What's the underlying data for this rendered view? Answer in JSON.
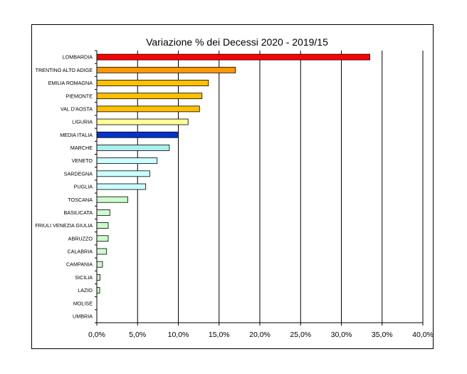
{
  "chart_data": {
    "type": "bar",
    "orientation": "horizontal",
    "title": "Variazione % dei Decessi 2020 - 2019/15",
    "xlabel": "",
    "ylabel": "",
    "xlim": [
      0,
      40
    ],
    "xticks": [
      0,
      5,
      10,
      15,
      20,
      25,
      30,
      35,
      40
    ],
    "xtick_labels": [
      "0,0%",
      "5,0%",
      "10,0%",
      "15,0%",
      "20,0%",
      "25,0%",
      "30,0%",
      "35,0%",
      "40,0%"
    ],
    "grid": "vertical",
    "legend": "none",
    "categories": [
      "LOMBARDIA",
      "TRENTINO ALTO ADIGE",
      "EMILIA ROMAGNA",
      "PIEMONTE",
      "VAL D'AOSTA",
      "LIGURIA",
      "MEDIA ITALIA",
      "MARCHE",
      "VENETO",
      "SARDEGNA",
      "PUGLIA",
      "TOSCANA",
      "BASILICATA",
      "FRIULI VENEZIA GIULIA",
      "ABRUZZO",
      "CALABRIA",
      "CAMPANIA",
      "SICILIA",
      "LAZIO",
      "MOLISE",
      "UMBRIA"
    ],
    "values": [
      33.5,
      17.0,
      13.7,
      12.9,
      12.6,
      11.2,
      9.9,
      8.9,
      7.4,
      6.5,
      6.0,
      3.8,
      1.6,
      1.4,
      1.4,
      1.2,
      0.7,
      0.4,
      0.35,
      0.0,
      0.0
    ],
    "colors": [
      "#ff0000",
      "#ff9900",
      "#ffc000",
      "#ffc000",
      "#ffc000",
      "#ffff99",
      "#0033cc",
      "#aaeeee",
      "#ccffff",
      "#ccffff",
      "#ccffff",
      "#ccffcc",
      "#ccffcc",
      "#ccffcc",
      "#ccffcc",
      "#ccffcc",
      "#ccffcc",
      "#ccffcc",
      "#ccffcc",
      "#ccffcc",
      "#ccffcc"
    ]
  }
}
